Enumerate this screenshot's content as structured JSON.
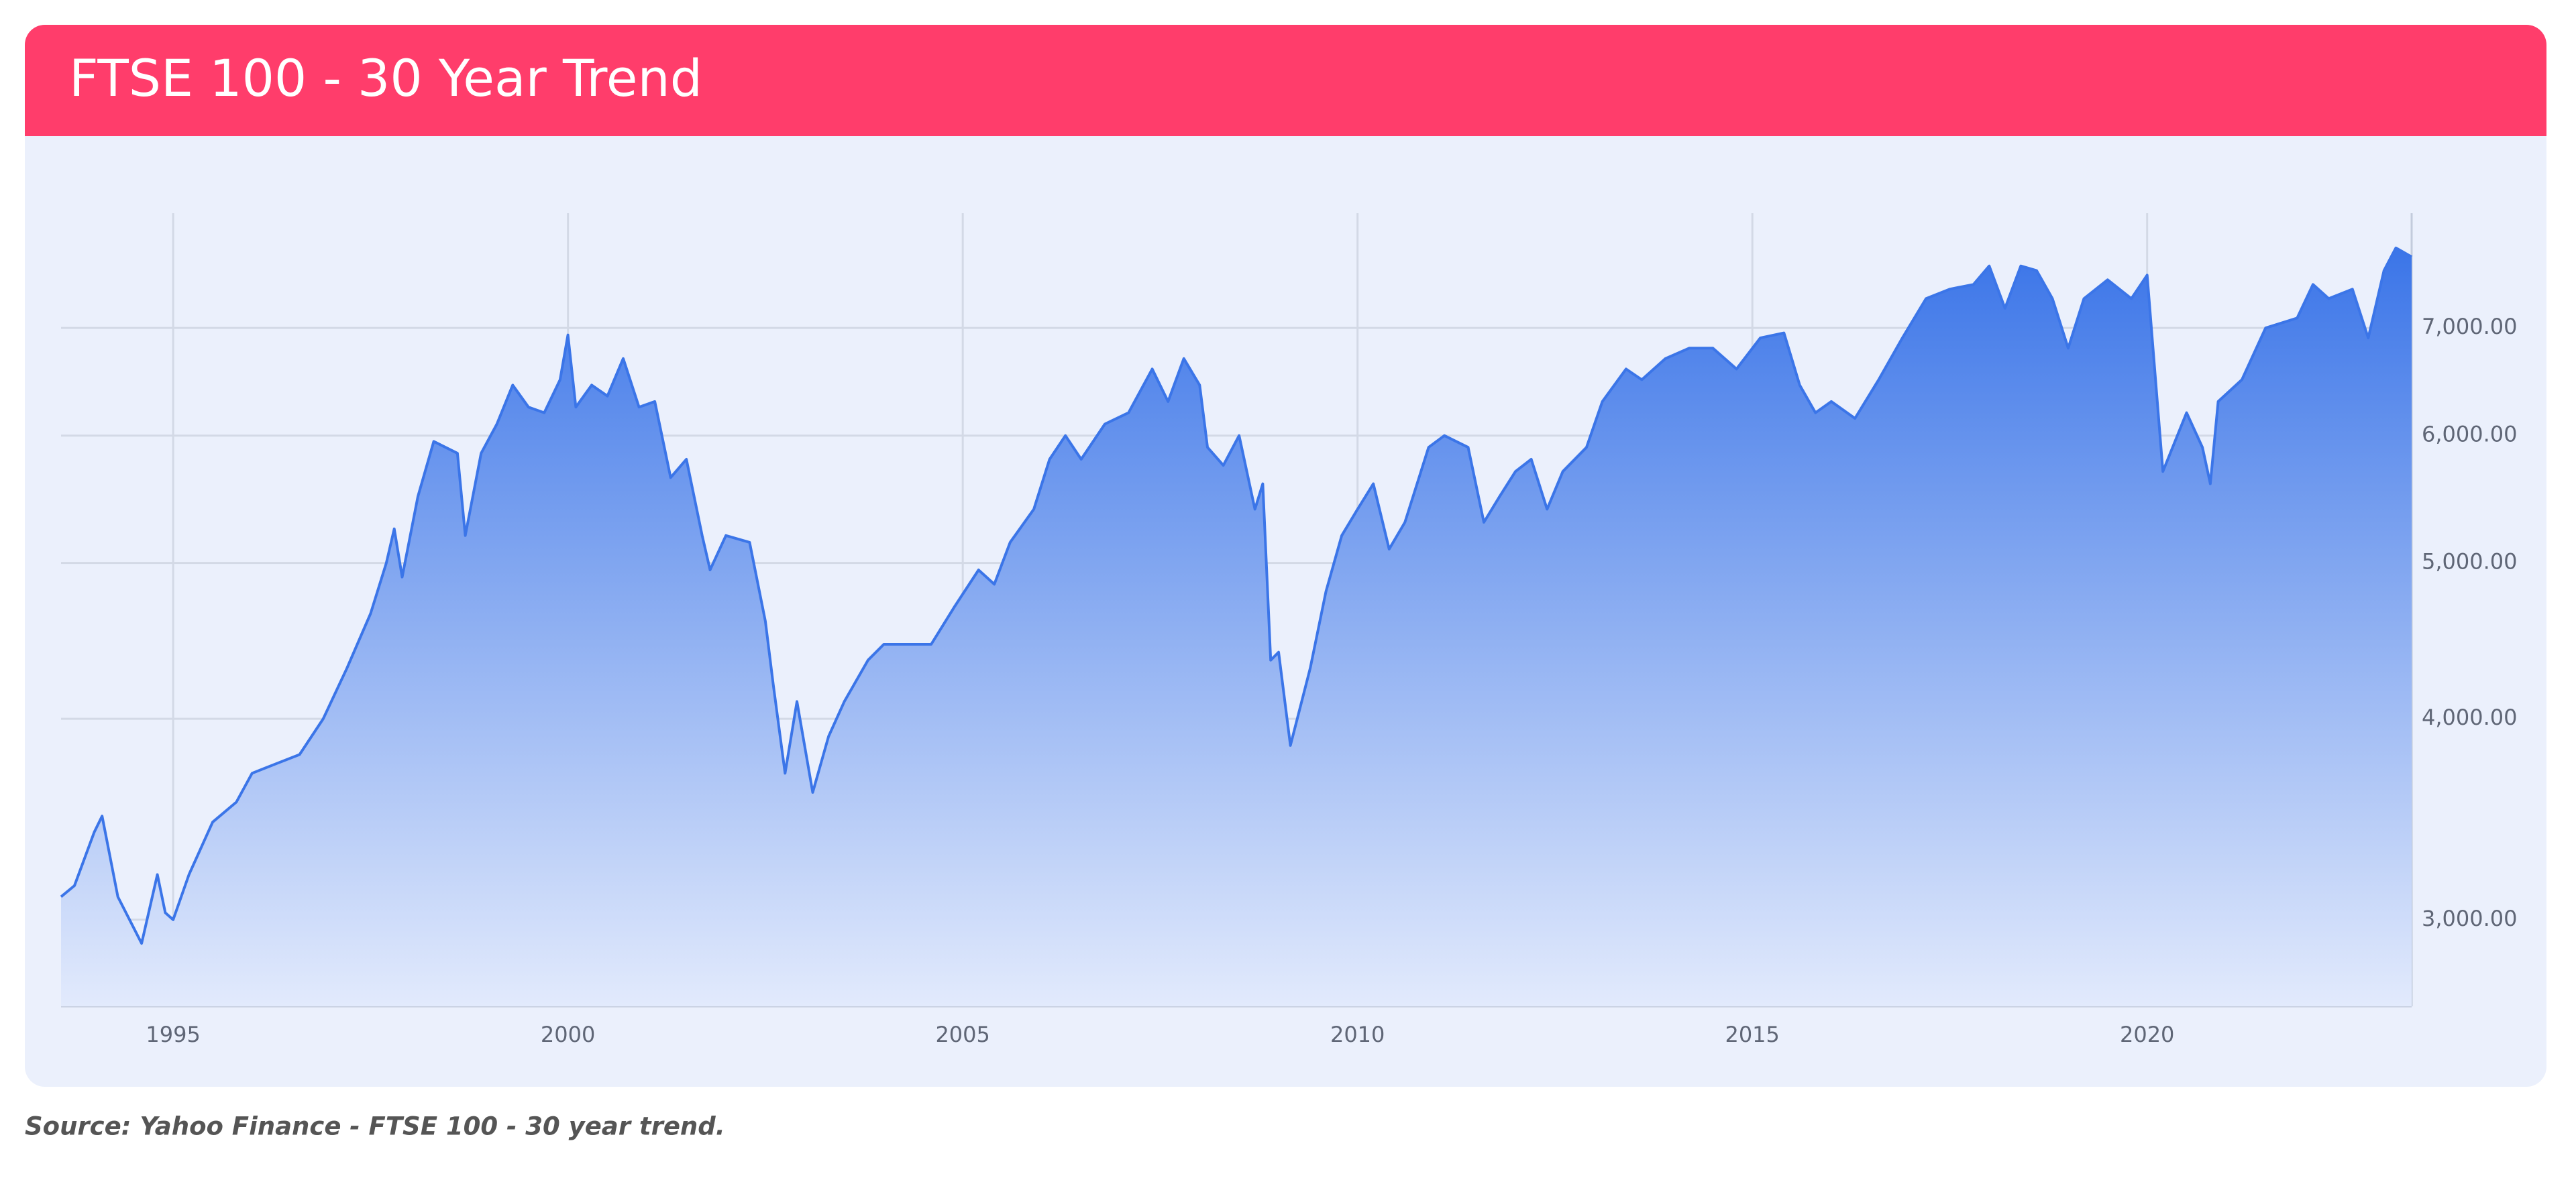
{
  "chart_data": {
    "type": "area",
    "title": "FTSE 100 - 30 Year Trend",
    "caption": "Source: Yahoo Finance - FTSE 100 - 30 year trend.",
    "log_scale": true,
    "grid": true,
    "color": "#3b75e8",
    "xlim": [
      1993.58,
      2023.35
    ],
    "xticks": [
      1995,
      2000,
      2005,
      2010,
      2015,
      2020
    ],
    "ylim": [
      2650,
      8250
    ],
    "yticks": [
      {
        "value": 3000,
        "label": "3,000.00"
      },
      {
        "value": 4000,
        "label": "4,000.00"
      },
      {
        "value": 5000,
        "label": "5,000.00"
      },
      {
        "value": 6000,
        "label": "6,000.00"
      },
      {
        "value": 7000,
        "label": "7,000.00"
      }
    ],
    "x": [
      1993.58,
      1993.75,
      1994.0,
      1994.1,
      1994.3,
      1994.6,
      1994.8,
      1994.9,
      1995.0,
      1995.2,
      1995.5,
      1995.8,
      1996.0,
      1996.3,
      1996.6,
      1996.9,
      1997.2,
      1997.5,
      1997.7,
      1997.8,
      1997.9,
      1998.1,
      1998.3,
      1998.6,
      1998.7,
      1998.9,
      1999.1,
      1999.3,
      1999.5,
      1999.7,
      1999.9,
      2000.0,
      2000.1,
      2000.3,
      2000.5,
      2000.7,
      2000.9,
      2001.1,
      2001.3,
      2001.5,
      2001.7,
      2001.8,
      2002.0,
      2002.3,
      2002.5,
      2002.6,
      2002.75,
      2002.9,
      2003.1,
      2003.3,
      2003.5,
      2003.8,
      2004.0,
      2004.3,
      2004.6,
      2004.9,
      2005.2,
      2005.4,
      2005.6,
      2005.9,
      2006.1,
      2006.3,
      2006.5,
      2006.8,
      2007.1,
      2007.4,
      2007.6,
      2007.8,
      2008.0,
      2008.1,
      2008.3,
      2008.5,
      2008.7,
      2008.8,
      2008.9,
      2009.0,
      2009.15,
      2009.4,
      2009.6,
      2009.8,
      2010.0,
      2010.2,
      2010.4,
      2010.6,
      2010.9,
      2011.1,
      2011.4,
      2011.6,
      2011.8,
      2012.0,
      2012.2,
      2012.4,
      2012.6,
      2012.9,
      2013.1,
      2013.4,
      2013.6,
      2013.9,
      2014.2,
      2014.5,
      2014.8,
      2015.1,
      2015.4,
      2015.6,
      2015.8,
      2016.0,
      2016.3,
      2016.6,
      2016.9,
      2017.2,
      2017.5,
      2017.8,
      2018.0,
      2018.2,
      2018.4,
      2018.6,
      2018.8,
      2019.0,
      2019.2,
      2019.5,
      2019.8,
      2020.0,
      2020.2,
      2020.5,
      2020.7,
      2020.8,
      2020.9,
      2021.2,
      2021.5,
      2021.9,
      2022.1,
      2022.3,
      2022.6,
      2022.8,
      2023.0,
      2023.15,
      2023.35
    ],
    "values": [
      3100,
      3150,
      3400,
      3480,
      3100,
      2900,
      3200,
      3030,
      3000,
      3200,
      3450,
      3550,
      3700,
      3750,
      3800,
      4000,
      4300,
      4650,
      5000,
      5250,
      4900,
      5500,
      5950,
      5850,
      5200,
      5850,
      6100,
      6450,
      6250,
      6200,
      6500,
      6930,
      6250,
      6450,
      6350,
      6700,
      6250,
      6300,
      5650,
      5800,
      5200,
      4950,
      5200,
      5150,
      4600,
      4200,
      3700,
      4100,
      3600,
      3900,
      4100,
      4350,
      4450,
      4450,
      4450,
      4700,
      4950,
      4850,
      5150,
      5400,
      5800,
      6000,
      5800,
      6100,
      6200,
      6600,
      6300,
      6700,
      6450,
      5900,
      5750,
      6000,
      5400,
      5600,
      4350,
      4400,
      3850,
      4300,
      4800,
      5200,
      5400,
      5600,
      5100,
      5300,
      5900,
      6000,
      5900,
      5300,
      5500,
      5700,
      5800,
      5400,
      5700,
      5900,
      6300,
      6600,
      6500,
      6700,
      6800,
      6800,
      6600,
      6900,
      6950,
      6450,
      6200,
      6300,
      6150,
      6500,
      6900,
      7300,
      7400,
      7450,
      7650,
      7200,
      7650,
      7600,
      7300,
      6800,
      7300,
      7500,
      7300,
      7550,
      5700,
      6200,
      5900,
      5600,
      6300,
      6500,
      7000,
      7100,
      7450,
      7300,
      7400,
      6900,
      7600,
      7850,
      7750
    ]
  }
}
